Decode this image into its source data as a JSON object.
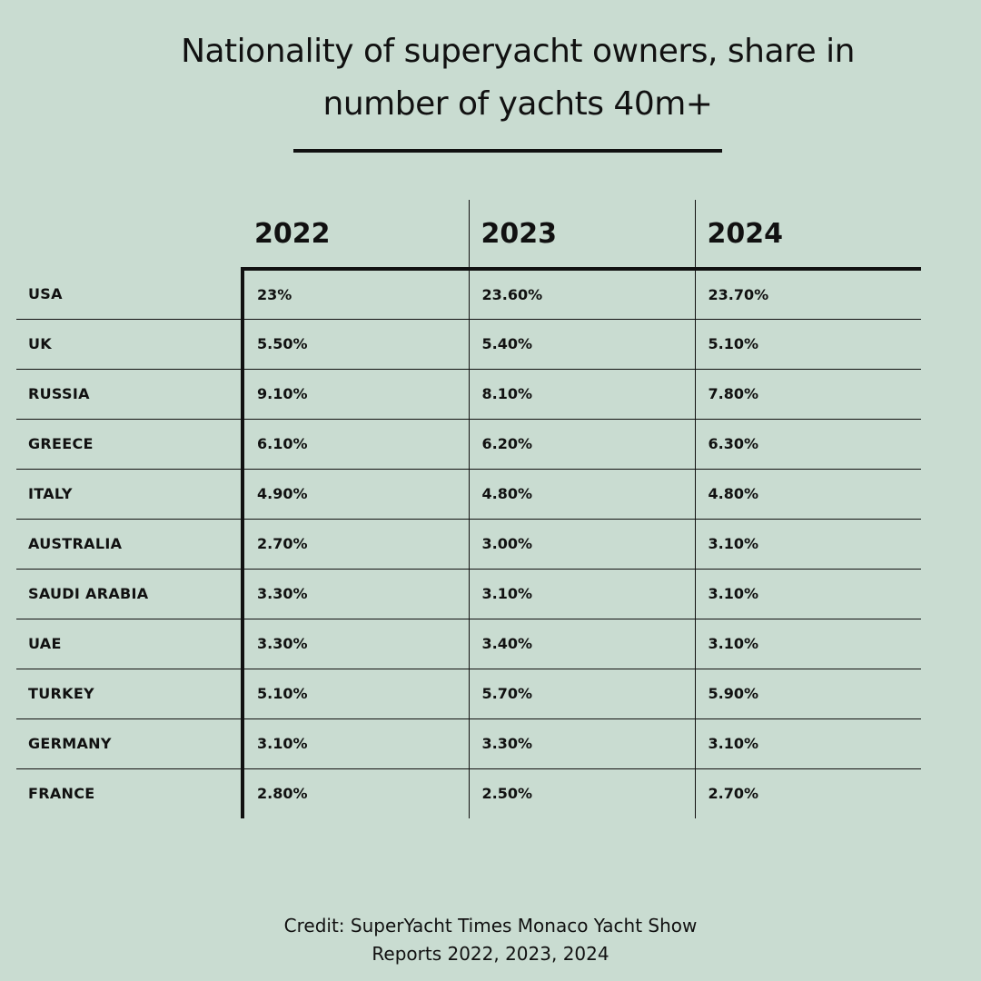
{
  "title": {
    "line1": "Nationality of superyacht owners, share in",
    "line2": "number of yachts 40m+"
  },
  "chart_data": {
    "type": "table",
    "title": "Nationality of superyacht owners, share in number of yachts 40m+",
    "columns": [
      "2022",
      "2023",
      "2024"
    ],
    "rows": [
      {
        "country": "USA",
        "values": [
          "23%",
          "23.60%",
          "23.70%"
        ]
      },
      {
        "country": "UK",
        "values": [
          "5.50%",
          "5.40%",
          "5.10%"
        ]
      },
      {
        "country": "RUSSIA",
        "values": [
          "9.10%",
          "8.10%",
          "7.80%"
        ]
      },
      {
        "country": "GREECE",
        "values": [
          "6.10%",
          "6.20%",
          "6.30%"
        ]
      },
      {
        "country": "ITALY",
        "values": [
          "4.90%",
          "4.80%",
          "4.80%"
        ]
      },
      {
        "country": "AUSTRALIA",
        "values": [
          "2.70%",
          "3.00%",
          "3.10%"
        ]
      },
      {
        "country": "SAUDI ARABIA",
        "values": [
          "3.30%",
          "3.10%",
          "3.10%"
        ]
      },
      {
        "country": "UAE",
        "values": [
          "3.30%",
          "3.40%",
          "3.10%"
        ]
      },
      {
        "country": "TURKEY",
        "values": [
          "5.10%",
          "5.70%",
          "5.90%"
        ]
      },
      {
        "country": "GERMANY",
        "values": [
          "3.10%",
          "3.30%",
          "3.10%"
        ]
      },
      {
        "country": "FRANCE",
        "values": [
          "2.80%",
          "2.50%",
          "2.70%"
        ]
      }
    ]
  },
  "credit": {
    "line1": "Credit: SuperYacht Times Monaco Yacht Show",
    "line2": "Reports 2022, 2023, 2024"
  },
  "colors": {
    "background": "#c9dcd1",
    "text": "#111111"
  }
}
